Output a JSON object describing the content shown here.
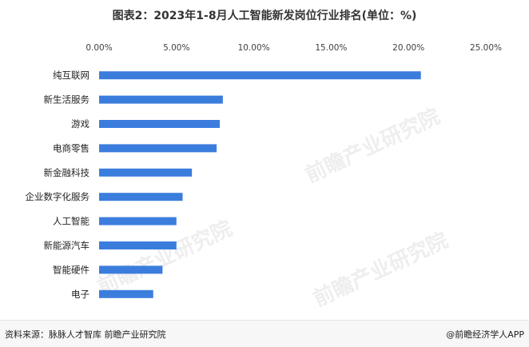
{
  "title": "图表2：2023年1-8月人工智能新发岗位行业排名(单位：%)",
  "chart_data": {
    "type": "bar",
    "orientation": "horizontal",
    "categories": [
      "纯互联网",
      "新生活服务",
      "游戏",
      "电商零售",
      "新金融科技",
      "企业数字化服务",
      "人工智能",
      "新能源汽车",
      "智能硬件",
      "电子"
    ],
    "values": [
      20.8,
      8.0,
      7.8,
      7.6,
      6.0,
      5.4,
      5.0,
      5.0,
      4.1,
      3.5
    ],
    "x_ticks": [
      "0.00%",
      "5.00%",
      "10.00%",
      "15.00%",
      "20.00%",
      "25.00%"
    ],
    "xlim": [
      0,
      25
    ],
    "axis_position": "top",
    "bar_color": "#3b7ddd",
    "grid": false,
    "legend": "none"
  },
  "footer": {
    "source": "资料来源：脉脉人才智库 前瞻产业研究院",
    "brand": "@前瞻经济学人APP"
  },
  "watermark": "前瞻产业研究院"
}
